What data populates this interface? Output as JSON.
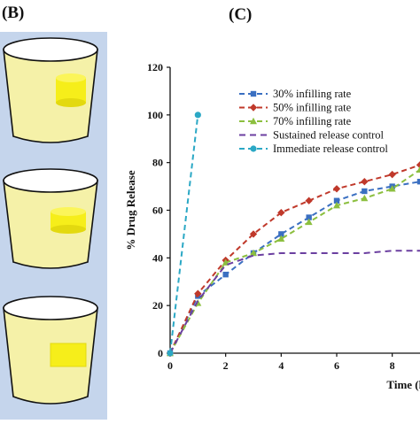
{
  "panels": {
    "left_label": "(B)",
    "right_label": "(C)"
  },
  "left_panel": {
    "background": "#c5d5ec",
    "liquid_color": "#f5f1a8",
    "tablet_color": "#f6ee1a",
    "containers": [
      {
        "tablet": "cylinder-tall"
      },
      {
        "tablet": "cylinder-flat"
      },
      {
        "tablet": "slab"
      }
    ]
  },
  "chart_data": {
    "type": "line",
    "title": "",
    "xlabel": "Time (h)",
    "ylabel": "% Drug Release",
    "xlim": [
      0,
      9
    ],
    "ylim": [
      0,
      120
    ],
    "xticks": [
      0,
      2,
      4,
      6,
      8
    ],
    "yticks": [
      0,
      20,
      40,
      60,
      80,
      100,
      120
    ],
    "grid": false,
    "legend_position": "top-left",
    "series": [
      {
        "name": "30% infilling rate",
        "color": "#3a6fc1",
        "marker": "square",
        "dash": "6,4",
        "x": [
          0,
          1,
          2,
          3,
          4,
          5,
          6,
          7,
          8,
          9
        ],
        "y": [
          0,
          24,
          33,
          42,
          50,
          57,
          64,
          68,
          70,
          72
        ]
      },
      {
        "name": "50% infilling rate",
        "color": "#c0392b",
        "marker": "diamond",
        "dash": "6,4",
        "x": [
          0,
          1,
          2,
          3,
          4,
          5,
          6,
          7,
          8,
          9
        ],
        "y": [
          0,
          25,
          39,
          50,
          59,
          64,
          69,
          72,
          75,
          79
        ]
      },
      {
        "name": "70% infilling rate",
        "color": "#8cbf3f",
        "marker": "triangle",
        "dash": "6,4",
        "x": [
          0,
          1,
          2,
          3,
          4,
          5,
          6,
          7,
          8,
          9
        ],
        "y": [
          0,
          21,
          38,
          42,
          48,
          55,
          62,
          65,
          69,
          77
        ]
      },
      {
        "name": "Sustained release control",
        "color": "#6b3fa0",
        "marker": "none",
        "dash": "7,5",
        "x": [
          0,
          1,
          2,
          3,
          4,
          5,
          6,
          7,
          8,
          9
        ],
        "y": [
          0,
          22,
          37,
          41,
          42,
          42,
          42,
          42,
          43,
          43
        ]
      },
      {
        "name": "Immediate release control",
        "color": "#2ba8c5",
        "marker": "circle",
        "dash": "6,4",
        "x": [
          0,
          1
        ],
        "y": [
          0,
          100
        ]
      }
    ]
  }
}
